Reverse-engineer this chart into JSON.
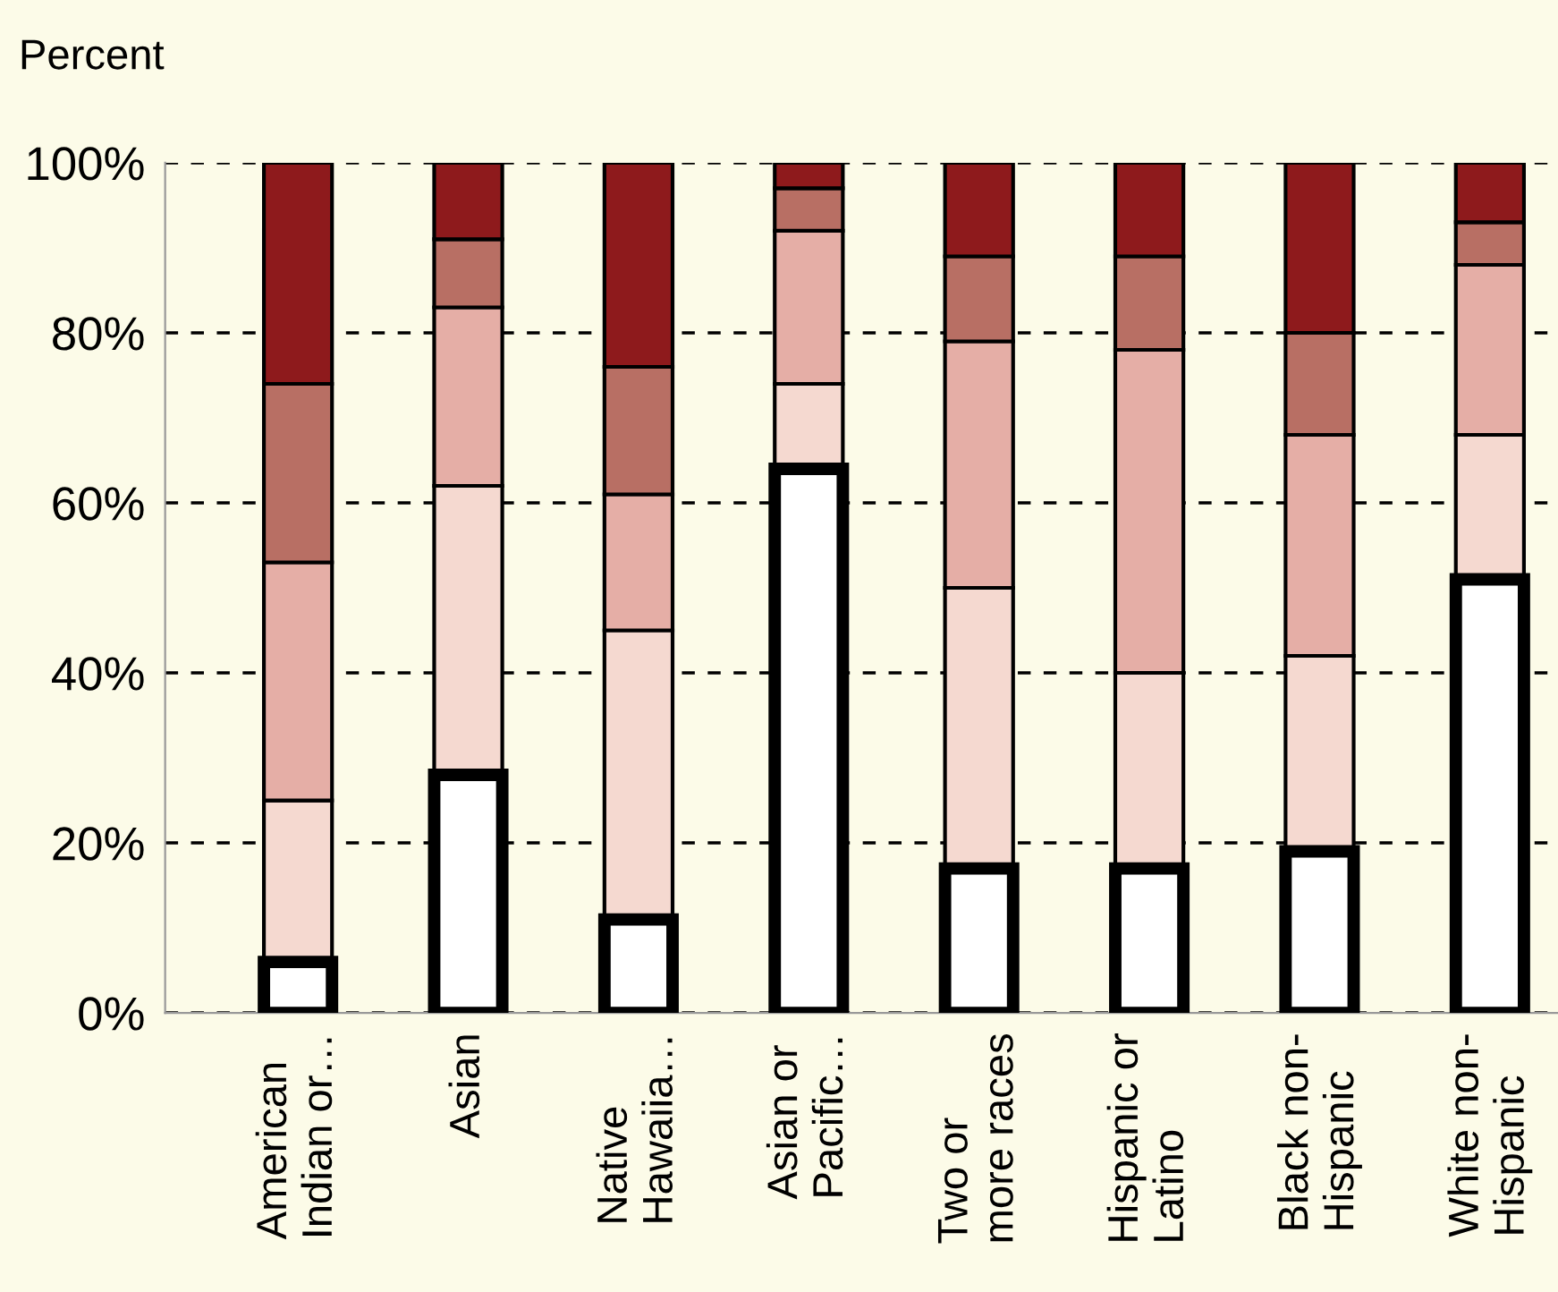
{
  "chart_data": {
    "type": "bar",
    "stacked": true,
    "ylabel": "Percent",
    "categories": [
      "American\nIndian or…",
      "Asian",
      "Native\nHawaiia…",
      "Asian or\nPacific…",
      "Two or\nmore races",
      "Hispanic or\nLatino",
      "Black non-\nHispanic",
      "White non-\nHispanic"
    ],
    "series": [
      {
        "color": "#ffffff",
        "values": [
          6,
          28,
          11,
          64,
          17,
          17,
          19,
          51
        ]
      },
      {
        "color": "#f5d9d0",
        "values": [
          19,
          34,
          34,
          10,
          33,
          23,
          23,
          17
        ]
      },
      {
        "color": "#e5aea6",
        "values": [
          28,
          21,
          16,
          18,
          29,
          38,
          26,
          20
        ]
      },
      {
        "color": "#b86f64",
        "values": [
          21,
          8,
          15,
          5,
          10,
          11,
          12,
          5
        ]
      },
      {
        "color": "#8e1a1c",
        "values": [
          26,
          9,
          24,
          3,
          11,
          11,
          20,
          7
        ]
      }
    ],
    "ylim": [
      0,
      100
    ],
    "yticks": [
      {
        "value": 0,
        "label": "0%"
      },
      {
        "value": 20,
        "label": "20%"
      },
      {
        "value": 40,
        "label": "40%"
      },
      {
        "value": 60,
        "label": "60%"
      },
      {
        "value": 80,
        "label": "80%"
      },
      {
        "value": 100,
        "label": "100%"
      }
    ],
    "grid": "y",
    "legend": false
  }
}
